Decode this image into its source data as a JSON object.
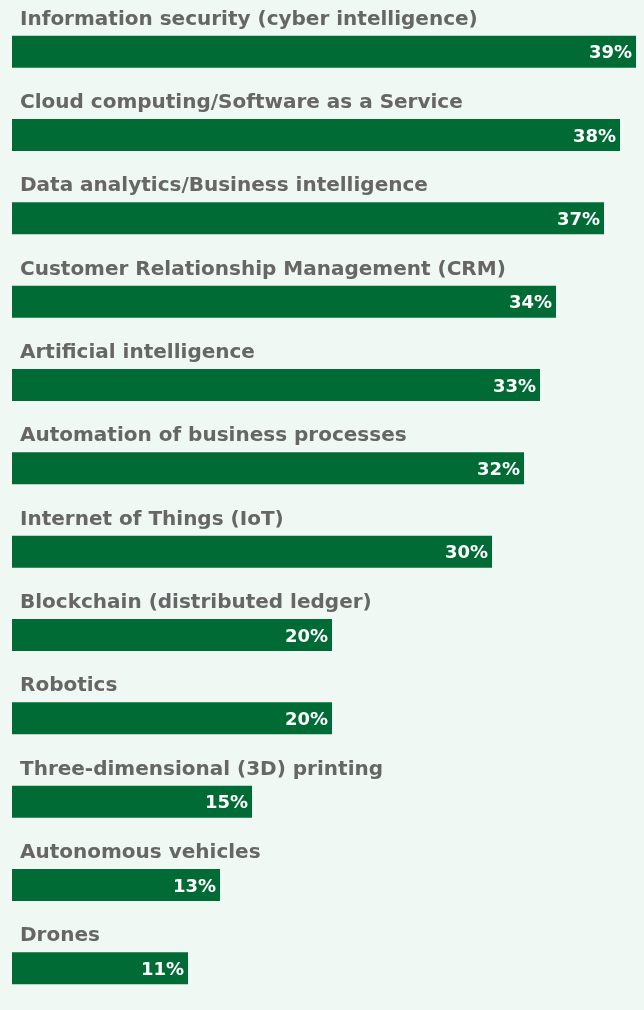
{
  "chart_data": {
    "type": "bar",
    "orientation": "horizontal",
    "categories": [
      "Information security (cyber intelligence)",
      "Cloud computing/Software as a Service",
      "Data analytics/Business intelligence",
      "Customer Relationship Management (CRM)",
      "Artificial intelligence",
      "Automation of business processes",
      "Internet of Things (IoT)",
      "Blockchain (distributed ledger)",
      "Robotics",
      "Three-dimensional (3D) printing",
      "Autonomous vehicles",
      "Drones"
    ],
    "values": [
      39,
      38,
      37,
      34,
      33,
      32,
      30,
      20,
      20,
      15,
      13,
      11
    ],
    "value_labels": [
      "39%",
      "38%",
      "37%",
      "34%",
      "33%",
      "32%",
      "30%",
      "20%",
      "20%",
      "15%",
      "13%",
      "11%"
    ],
    "color": "#006b35"
  }
}
